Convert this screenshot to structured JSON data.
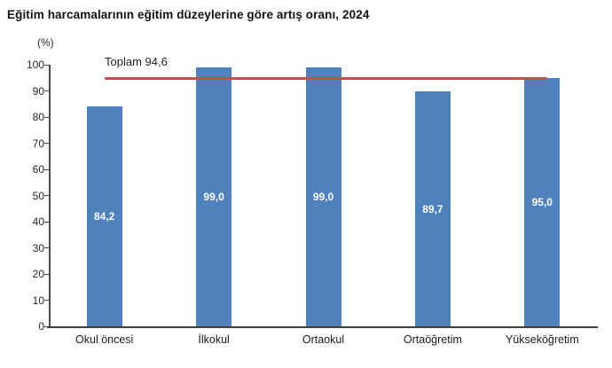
{
  "title": "Eğitim harcamalarının eğitim düzeylerine göre artış oranı, 2024",
  "colors": {
    "bar": "#4f81bd",
    "reference_line": "#c0504d",
    "axis": "#4a4a4a",
    "value_label_text": "#ffffff"
  },
  "chart_data": {
    "type": "bar",
    "title": "Eğitim harcamalarının eğitim düzeylerine göre artış oranı, 2024",
    "ylabel": "(%)",
    "xlabel": "",
    "categories": [
      "Okul öncesi",
      "İlkokul",
      "Ortaokul",
      "Ortaöğretim",
      "Yükseköğretim"
    ],
    "values": [
      84.2,
      99.0,
      99.0,
      89.7,
      95.0
    ],
    "value_labels": [
      "84,2",
      "99,0",
      "99,0",
      "89,7",
      "95,0"
    ],
    "ylim": [
      0,
      100
    ],
    "yticks": [
      0,
      10,
      20,
      30,
      40,
      50,
      60,
      70,
      80,
      90,
      100
    ],
    "grid": false,
    "legend": false,
    "reference_line": {
      "value": 94.6,
      "label": "Toplam 94,6"
    }
  }
}
